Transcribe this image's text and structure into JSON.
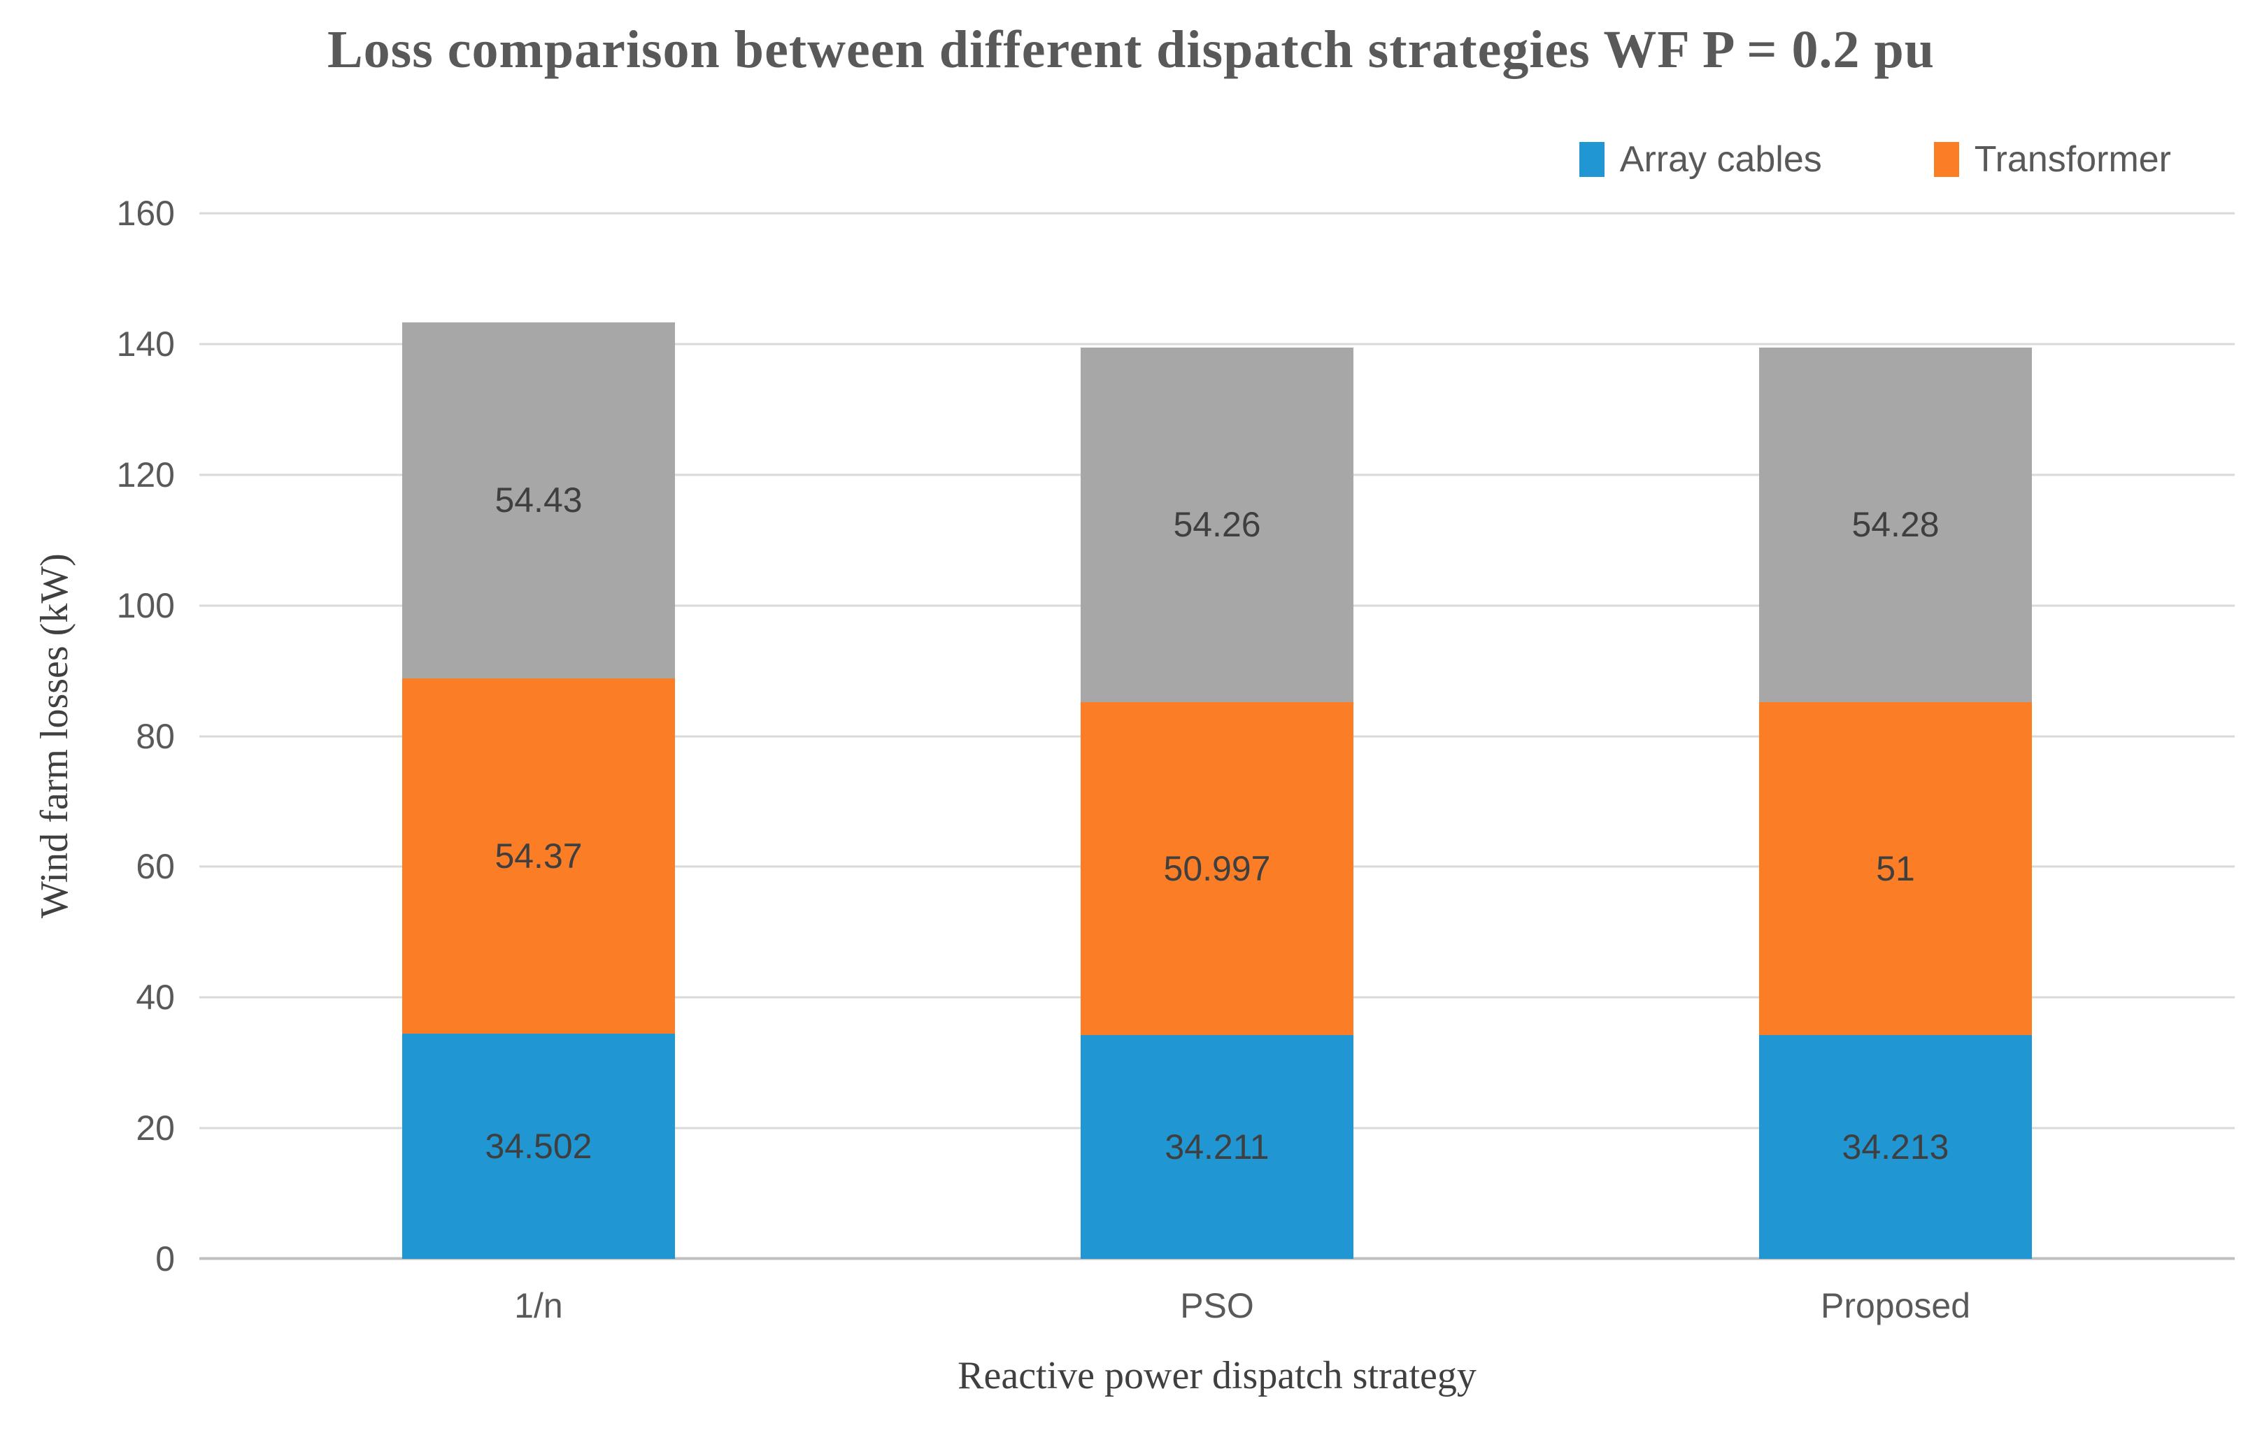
{
  "chart_data": {
    "type": "bar",
    "stacked": true,
    "title": "Loss comparison between different dispatch strategies WF P = 0.2 pu",
    "xlabel": "Reactive power dispatch strategy",
    "ylabel": "Wind farm losses (kW)",
    "categories": [
      "1/n",
      "PSO",
      "Proposed"
    ],
    "series": [
      {
        "name": "Array cables",
        "color": "#2096D3",
        "values": [
          34.502,
          34.211,
          34.213
        ],
        "in_legend": true
      },
      {
        "name": "Transformer",
        "color": "#FB7D25",
        "values": [
          54.37,
          50.997,
          51
        ],
        "in_legend": true
      },
      {
        "name": "",
        "color": "#A7A7A7",
        "values": [
          54.43,
          54.26,
          54.28
        ],
        "in_legend": false
      }
    ],
    "ylim": [
      0,
      160
    ],
    "yticks": [
      0,
      20,
      40,
      60,
      80,
      100,
      120,
      140,
      160
    ],
    "grid": "horizontal",
    "legend_position": "top-right",
    "colors": {
      "title_text": "#595959",
      "axis_tick_text": "#595959",
      "axis_title_text": "#404040",
      "data_label_text": "#3F3F3F",
      "gridline": "#D9D9D9",
      "baseline": "#BFBFBF",
      "background": "#FFFFFF"
    }
  }
}
